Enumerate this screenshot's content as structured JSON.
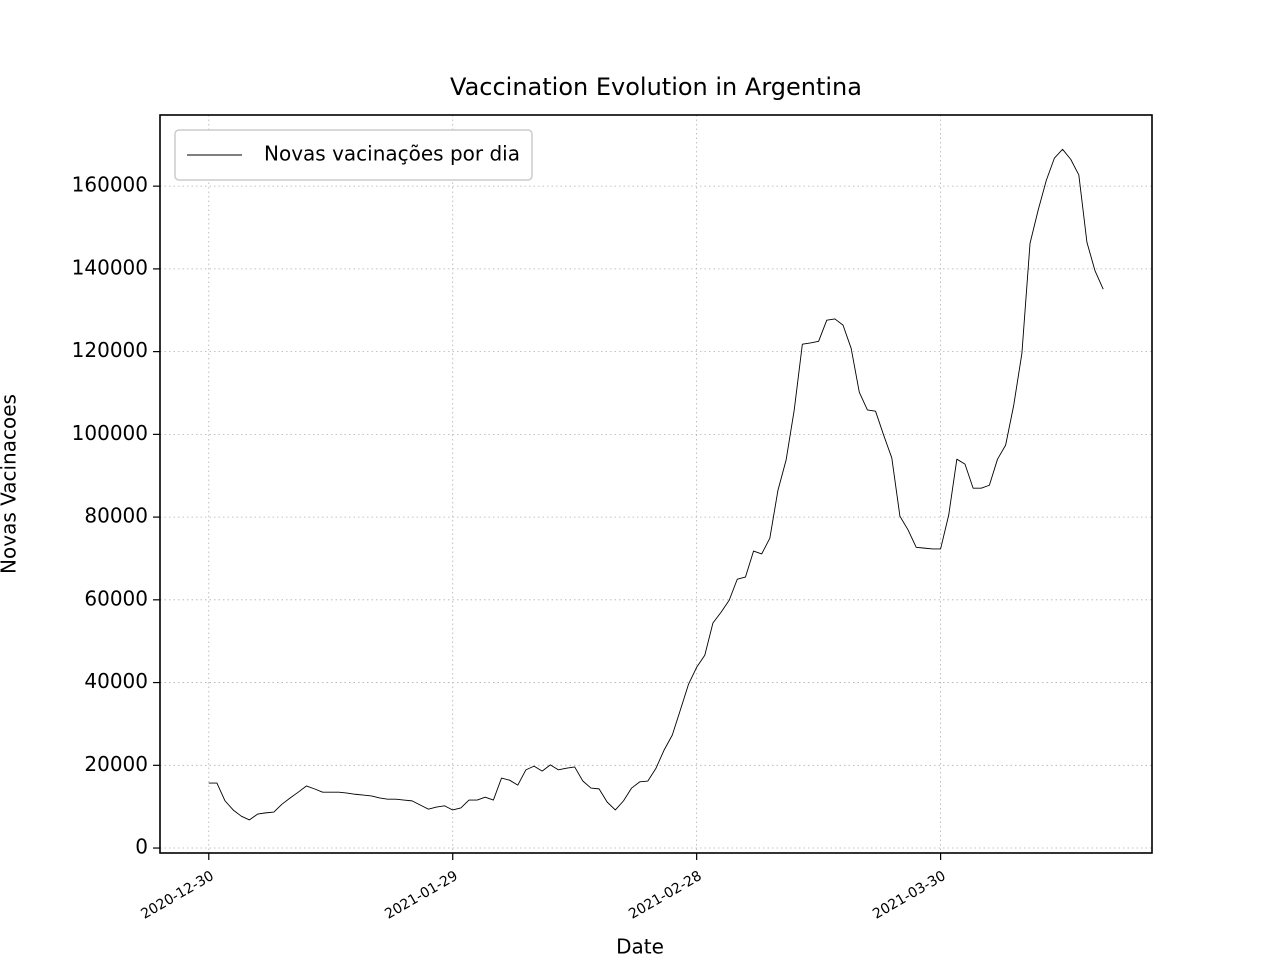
{
  "chart_data": {
    "type": "line",
    "title": "Vaccination Evolution in Argentina",
    "xlabel": "Date",
    "ylabel": "Novas Vacinacoes",
    "x": [
      "2020-12-30",
      "2020-12-31",
      "2021-01-01",
      "2021-01-02",
      "2021-01-03",
      "2021-01-04",
      "2021-01-05",
      "2021-01-06",
      "2021-01-07",
      "2021-01-08",
      "2021-01-09",
      "2021-01-10",
      "2021-01-11",
      "2021-01-12",
      "2021-01-13",
      "2021-01-14",
      "2021-01-15",
      "2021-01-16",
      "2021-01-17",
      "2021-01-18",
      "2021-01-19",
      "2021-01-20",
      "2021-01-21",
      "2021-01-22",
      "2021-01-23",
      "2021-01-24",
      "2021-01-25",
      "2021-01-26",
      "2021-01-27",
      "2021-01-28",
      "2021-01-29",
      "2021-01-30",
      "2021-01-31",
      "2021-02-01",
      "2021-02-02",
      "2021-02-03",
      "2021-02-04",
      "2021-02-05",
      "2021-02-06",
      "2021-02-07",
      "2021-02-08",
      "2021-02-09",
      "2021-02-10",
      "2021-02-11",
      "2021-02-12",
      "2021-02-13",
      "2021-02-14",
      "2021-02-15",
      "2021-02-16",
      "2021-02-17",
      "2021-02-18",
      "2021-02-19",
      "2021-02-20",
      "2021-02-21",
      "2021-02-22",
      "2021-02-23",
      "2021-02-24",
      "2021-02-25",
      "2021-02-26",
      "2021-02-27",
      "2021-02-28",
      "2021-03-01",
      "2021-03-02",
      "2021-03-03",
      "2021-03-04",
      "2021-03-05",
      "2021-03-06",
      "2021-03-07",
      "2021-03-08",
      "2021-03-09",
      "2021-03-10",
      "2021-03-11",
      "2021-03-12",
      "2021-03-13",
      "2021-03-14",
      "2021-03-15",
      "2021-03-16",
      "2021-03-17",
      "2021-03-18",
      "2021-03-19",
      "2021-03-20",
      "2021-03-21",
      "2021-03-22",
      "2021-03-23",
      "2021-03-24",
      "2021-03-25",
      "2021-03-26",
      "2021-03-27",
      "2021-03-28",
      "2021-03-29",
      "2021-03-30",
      "2021-03-31",
      "2021-04-01",
      "2021-04-02",
      "2021-04-03",
      "2021-04-04",
      "2021-04-05",
      "2021-04-06",
      "2021-04-07",
      "2021-04-08",
      "2021-04-09",
      "2021-04-10",
      "2021-04-11",
      "2021-04-12",
      "2021-04-13",
      "2021-04-14",
      "2021-04-15",
      "2021-04-16",
      "2021-04-17",
      "2021-04-18",
      "2021-04-19"
    ],
    "series": [
      {
        "name": "Novas vacinações por dia",
        "color": "#000000",
        "values": [
          15700,
          15700,
          11400,
          9200,
          7700,
          6800,
          8200,
          8500,
          8700,
          10600,
          12100,
          13500,
          15000,
          14300,
          13500,
          13500,
          13500,
          13300,
          13000,
          12800,
          12600,
          12100,
          11800,
          11800,
          11600,
          11400,
          10400,
          9400,
          9900,
          10200,
          9200,
          9700,
          11600,
          11600,
          12300,
          11600,
          16900,
          16400,
          15200,
          18900,
          19800,
          18600,
          20100,
          18900,
          19300,
          19600,
          16200,
          14500,
          14300,
          11100,
          9200,
          11400,
          14500,
          16000,
          16200,
          19300,
          23700,
          27300,
          33400,
          39600,
          43700,
          46600,
          54400,
          57000,
          59900,
          65000,
          65500,
          71800,
          71100,
          74900,
          86500,
          93800,
          105900,
          121800,
          122100,
          122500,
          127600,
          127900,
          126400,
          120800,
          110200,
          105900,
          105600,
          99800,
          94300,
          80200,
          76900,
          72700,
          72500,
          72300,
          72300,
          80500,
          94000,
          92800,
          87000,
          87000,
          87700,
          94000,
          97400,
          107100,
          119600,
          146200,
          154200,
          161400,
          166800,
          168900,
          166500,
          162700,
          146400,
          139500,
          135100
        ]
      }
    ],
    "xlim": [
      "2020-12-24",
      "2021-04-25"
    ],
    "xticks": [
      "2020-12-30",
      "2021-01-29",
      "2021-02-28",
      "2021-03-30"
    ],
    "ylim": [
      -1200,
      177200
    ],
    "yticks": [
      0,
      20000,
      40000,
      60000,
      80000,
      100000,
      120000,
      140000,
      160000
    ],
    "grid": true,
    "legend": "upper left"
  }
}
